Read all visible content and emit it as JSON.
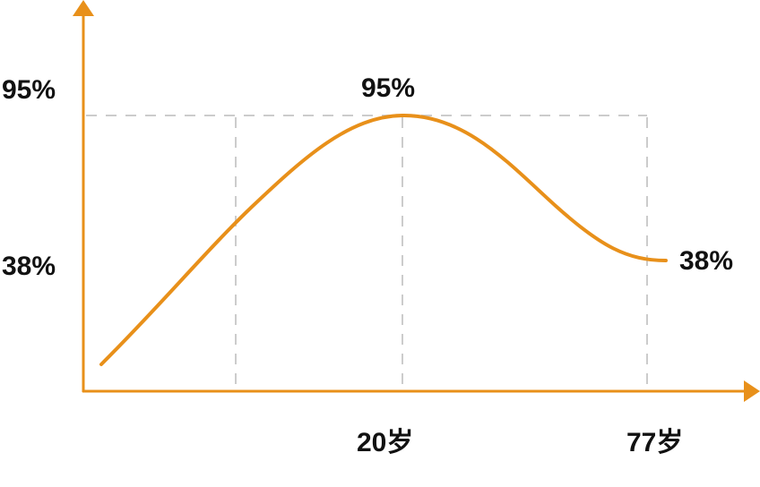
{
  "chart_data": {
    "type": "line",
    "title": "",
    "xlabel": "",
    "ylabel": "",
    "y_tick_labels": [
      "95%",
      "38%"
    ],
    "x_tick_labels": [
      "20岁",
      "77岁"
    ],
    "annotations": [
      {
        "text": "95%",
        "at": "20岁"
      },
      {
        "text": "38%",
        "at": "77岁"
      }
    ],
    "series": [
      {
        "points": [
          {
            "x": "20岁",
            "y": 95
          },
          {
            "x": "77岁",
            "y": 38
          }
        ]
      }
    ],
    "grid": "dashed reference lines",
    "colors": {
      "line": "#E8901A",
      "axis": "#E8901A",
      "grid": "#CCCCCC",
      "text": "#111111"
    }
  }
}
